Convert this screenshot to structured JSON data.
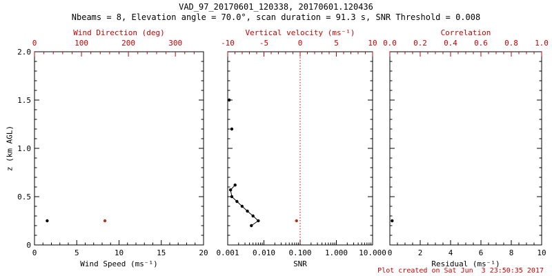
{
  "title": "VAD_97_20170601_120338, 20170601.120436",
  "subtitle": "Nbeams = 8, Elevation angle = 70.0°, scan duration = 91.3 s, SNR Threshold = 0.008",
  "footer": "Plot created on Sat Jun  3 23:50:35 2017",
  "colors": {
    "axis_black": "#000000",
    "axis_red": "#cc0000",
    "point_black": "#000000",
    "point_red": "#a8391f"
  },
  "y_axis": {
    "label": "z (km AGL)",
    "min": 0,
    "max": 2.0,
    "ticks": [
      0,
      0.5,
      1.0,
      1.5,
      2.0
    ],
    "tick_labels": [
      "0",
      "0.5",
      "1.0",
      "1.5",
      "2.0"
    ],
    "minor_step": 0.1
  },
  "chart_data": [
    {
      "type": "scatter",
      "name": "wind-speed-and-direction",
      "bottom_axis": {
        "label": "Wind Speed (ms⁻¹)",
        "scale": "linear",
        "min": 0,
        "max": 20,
        "ticks": [
          0,
          5,
          10,
          15,
          20
        ],
        "tick_labels": [
          "0",
          "5",
          "10",
          "15",
          "20"
        ],
        "minor_step": 1,
        "color": "black"
      },
      "top_axis": {
        "label": "Wind Direction (deg)",
        "scale": "linear",
        "min": 0,
        "max": 360,
        "ticks": [
          0,
          100,
          200,
          300
        ],
        "tick_labels": [
          "0",
          "100",
          "200",
          "300"
        ],
        "minor_step": 20,
        "color": "red"
      },
      "series": [
        {
          "name": "wind-speed",
          "axis": "bottom",
          "color": "black",
          "line": false,
          "points": [
            [
              1.5,
              0.25
            ]
          ]
        },
        {
          "name": "wind-direction",
          "axis": "top",
          "color": "red",
          "line": false,
          "points": [
            [
              150,
              0.25
            ]
          ]
        }
      ]
    },
    {
      "type": "scatter",
      "name": "snr-and-vertical-velocity",
      "bottom_axis": {
        "label": "SNR",
        "scale": "log",
        "min": 0.001,
        "max": 10,
        "ticks": [
          0.001,
          0.01,
          0.1,
          1,
          10
        ],
        "tick_labels": [
          "0.001",
          "0.010",
          "0.100",
          "1.000",
          "10.000"
        ],
        "color": "black"
      },
      "top_axis": {
        "label": "Vertical velocity (ms⁻¹)",
        "scale": "linear",
        "min": -10,
        "max": 10,
        "ticks": [
          -10,
          -5,
          0,
          5,
          10
        ],
        "tick_labels": [
          "-10",
          "-5",
          "0",
          "5",
          "10"
        ],
        "minor_step": 1,
        "color": "red"
      },
      "ref_line": {
        "axis": "top",
        "value": 0,
        "style": "dotted",
        "color": "red"
      },
      "series": [
        {
          "name": "snr-upper-gates",
          "axis": "bottom",
          "color": "black",
          "line": false,
          "points": [
            [
              0.0011,
              1.5
            ],
            [
              0.0013,
              1.2
            ]
          ]
        },
        {
          "name": "snr-profile",
          "axis": "bottom",
          "color": "black",
          "line": true,
          "points": [
            [
              0.0016,
              0.62
            ],
            [
              0.0012,
              0.57
            ],
            [
              0.0013,
              0.5
            ],
            [
              0.0018,
              0.45
            ],
            [
              0.0025,
              0.4
            ],
            [
              0.0035,
              0.35
            ],
            [
              0.005,
              0.3
            ],
            [
              0.007,
              0.25
            ],
            [
              0.0045,
              0.2
            ]
          ]
        },
        {
          "name": "vertical-velocity",
          "axis": "top",
          "color": "red",
          "line": false,
          "points": [
            [
              -0.5,
              0.25
            ]
          ]
        }
      ]
    },
    {
      "type": "scatter",
      "name": "residual-and-correlation",
      "bottom_axis": {
        "label": "Residual (ms⁻¹)",
        "scale": "linear",
        "min": 0,
        "max": 10,
        "ticks": [
          0,
          2,
          4,
          6,
          8,
          10
        ],
        "tick_labels": [
          "0",
          "2",
          "4",
          "6",
          "8",
          "10"
        ],
        "minor_step": 0.5,
        "color": "black"
      },
      "top_axis": {
        "label": "Correlation",
        "scale": "linear",
        "min": 0,
        "max": 1,
        "ticks": [
          0,
          0.2,
          0.4,
          0.6,
          0.8,
          1.0
        ],
        "tick_labels": [
          "0.0",
          "0.2",
          "0.4",
          "0.6",
          "0.8",
          "1.0"
        ],
        "minor_step": 0.05,
        "color": "red"
      },
      "series": [
        {
          "name": "residual",
          "axis": "bottom",
          "color": "black",
          "line": false,
          "points": [
            [
              0.15,
              0.25
            ]
          ]
        }
      ]
    }
  ]
}
